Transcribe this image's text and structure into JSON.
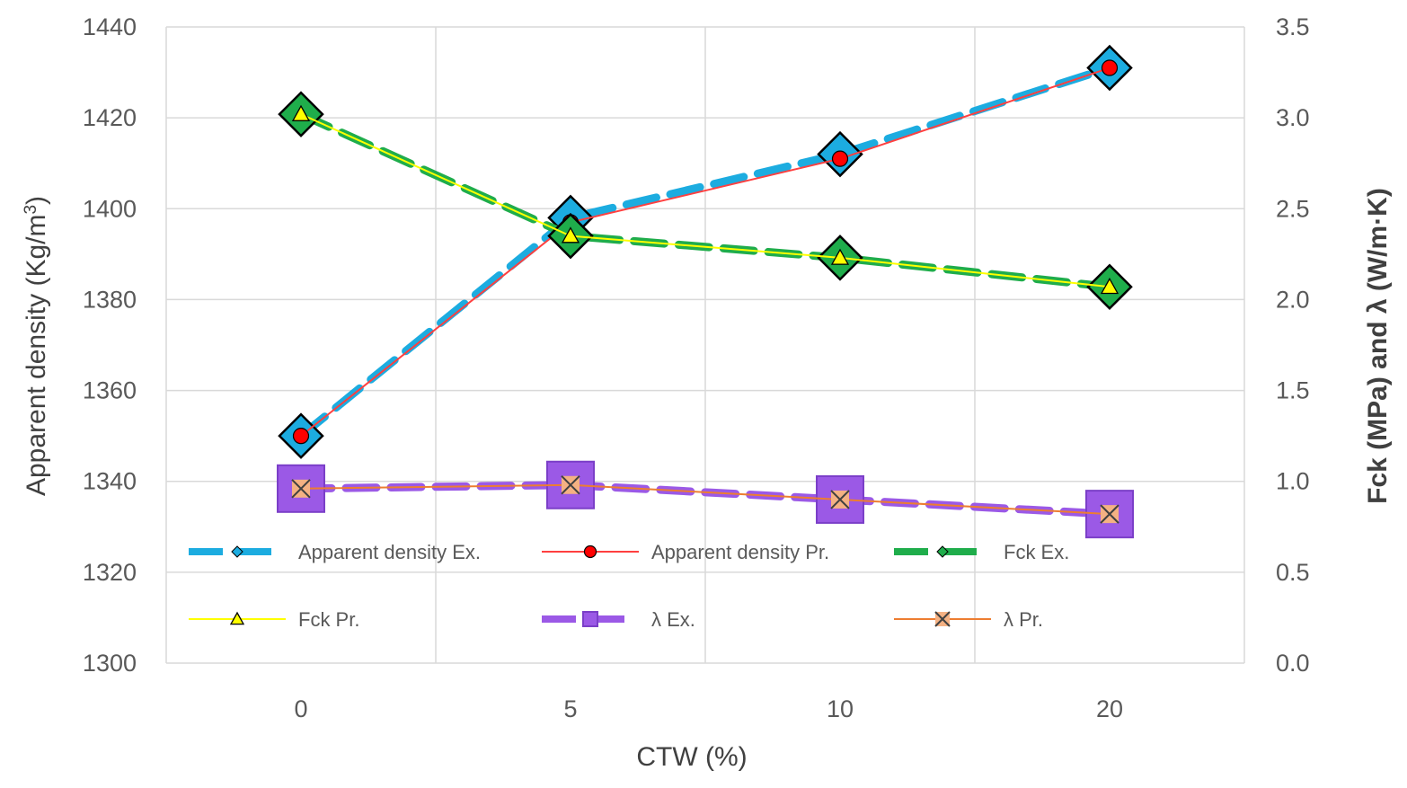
{
  "chart_data": {
    "type": "line",
    "categories": [
      "0",
      "5",
      "10",
      "20"
    ],
    "xlabel": "CTW (%)",
    "ylabel_left": "Apparent density (Kg/m³)",
    "ylabel_left_main": "Apparent density (Kg/m",
    "ylabel_left_sup": "3",
    "ylabel_left_end": ")",
    "ylabel_right": "Fck (MPa) and λ (W/m·K)",
    "y_left": {
      "min": 1300,
      "max": 1440,
      "step": 20,
      "ticks": [
        "1300",
        "1320",
        "1340",
        "1360",
        "1380",
        "1400",
        "1420",
        "1440"
      ]
    },
    "y_right": {
      "min": 0,
      "max": 3.5,
      "step": 0.5,
      "ticks": [
        "0.0",
        "0.5",
        "1.0",
        "1.5",
        "2.0",
        "2.5",
        "3.0",
        "3.5"
      ]
    },
    "grid": true,
    "legend_position": "inside-bottom",
    "series": [
      {
        "name": "Apparent density Ex.",
        "axis": "left",
        "values": [
          1350,
          1398,
          1412,
          1431
        ],
        "color": "#1cace0",
        "style": "dashed-thick",
        "marker": "diamond"
      },
      {
        "name": "Apparent density Pr.",
        "axis": "left",
        "values": [
          1350,
          1397,
          1411,
          1431
        ],
        "color": "#ff4040",
        "marker_color": "#ff0000",
        "style": "solid-thin",
        "marker": "circle"
      },
      {
        "name": "Fck Ex.",
        "axis": "right",
        "values": [
          3.02,
          2.35,
          2.23,
          2.07
        ],
        "color": "#1fad4b",
        "style": "dashed-thick",
        "marker": "diamond"
      },
      {
        "name": "Fck Pr.",
        "axis": "right",
        "values": [
          3.02,
          2.35,
          2.23,
          2.07
        ],
        "color": "#ffff00",
        "style": "solid-thin",
        "marker": "triangle"
      },
      {
        "name": "λ Ex.",
        "axis": "right",
        "values": [
          0.96,
          0.98,
          0.9,
          0.82
        ],
        "color": "#9b59e6",
        "style": "dashed-thick",
        "marker": "square"
      },
      {
        "name": "λ Pr.",
        "axis": "right",
        "values": [
          0.96,
          0.98,
          0.9,
          0.82
        ],
        "color": "#ed7d31",
        "marker_color": "#f4b183",
        "style": "solid-thin",
        "marker": "x"
      }
    ]
  }
}
